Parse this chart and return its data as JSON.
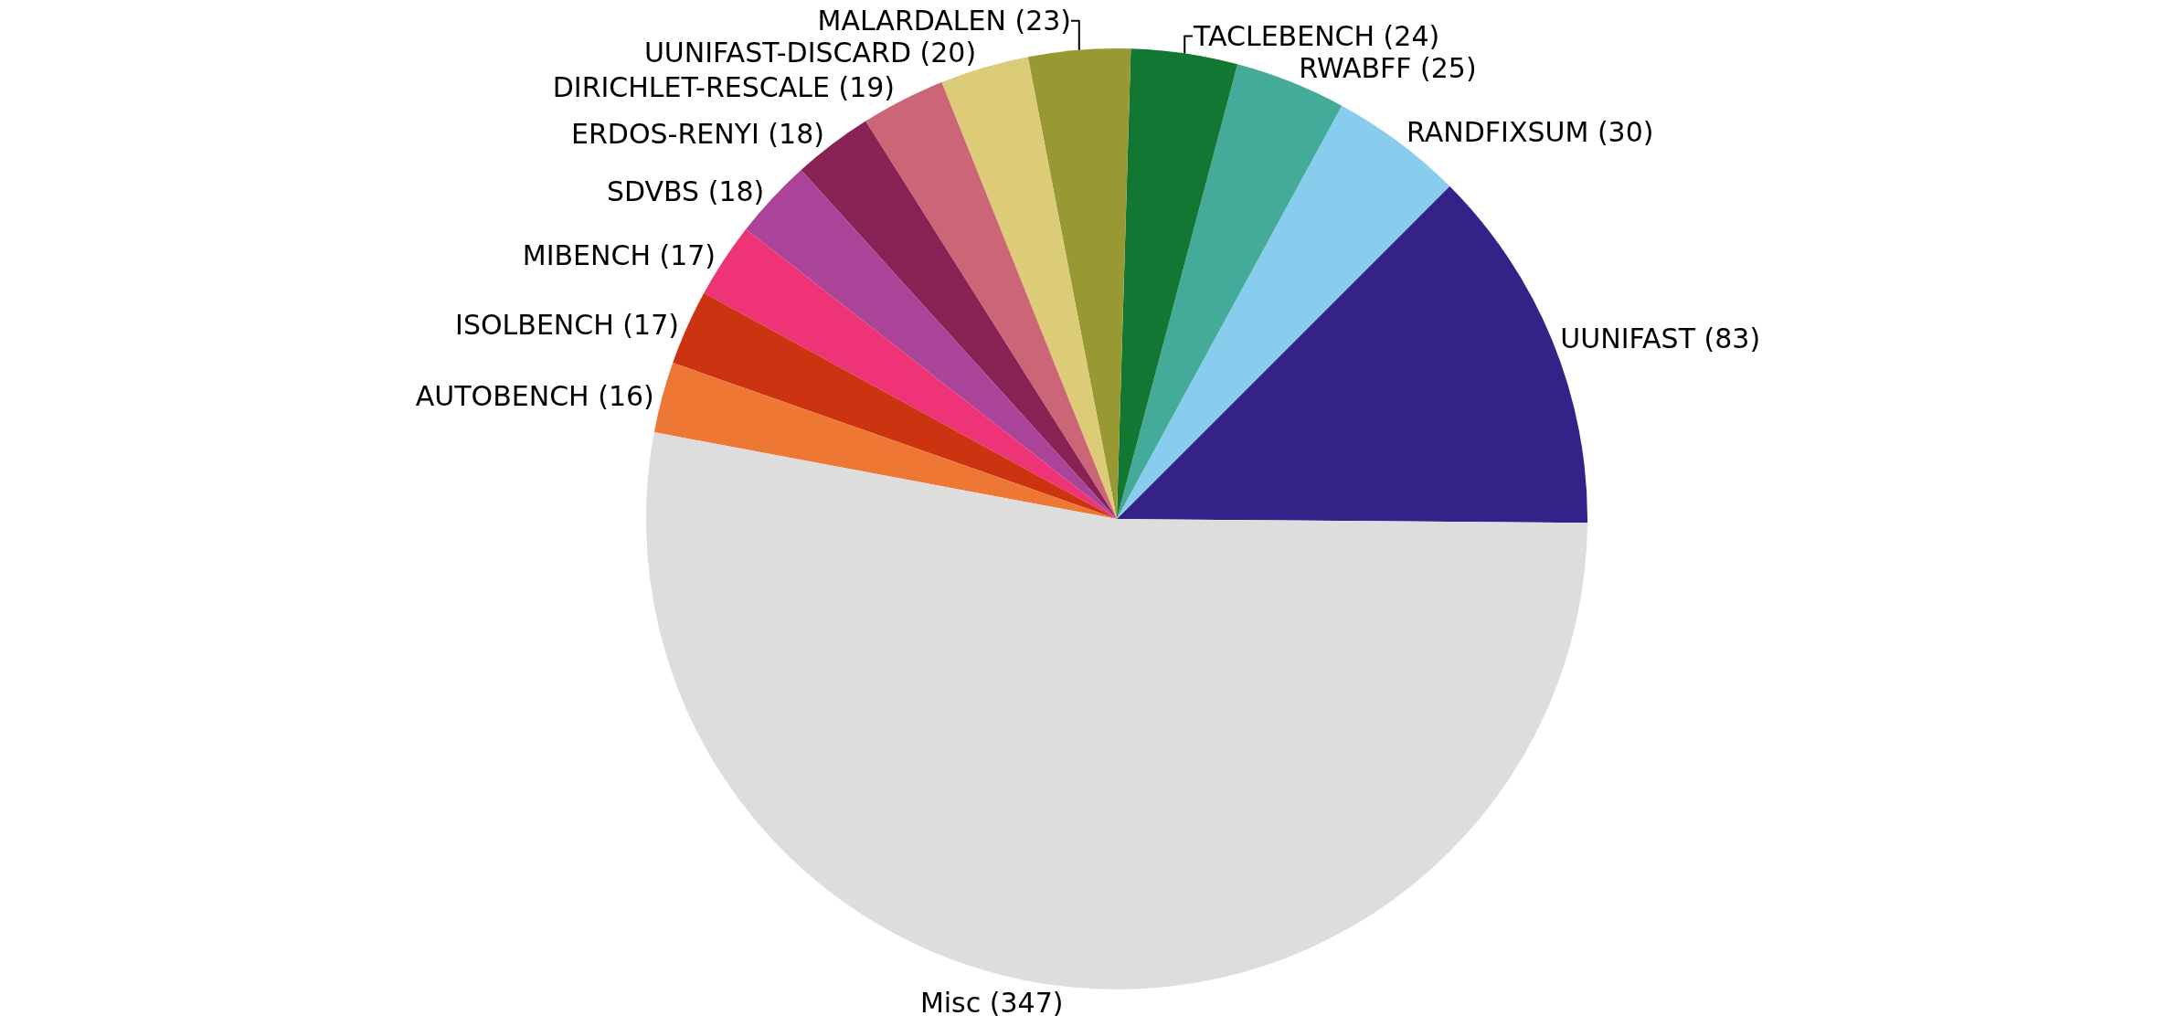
{
  "chart_data": {
    "type": "pie",
    "categories": [
      "UUNIFAST (83)",
      "RANDFIXSUM (30)",
      "RWABFF (25)",
      "TACLEBENCH (24)",
      "MALARDALEN (23)",
      "UUNIFAST-DISCARD (20)",
      "DIRICHLET-RESCALE (19)",
      "ERDOS-RENYI (18)",
      "SDVBS (18)",
      "MIBENCH (17)",
      "ISOLBENCH (17)",
      "AUTOBENCH (16)",
      "Misc (347)"
    ],
    "values": [
      83,
      30,
      25,
      24,
      23,
      20,
      19,
      18,
      18,
      17,
      17,
      16,
      347
    ],
    "colors": [
      "#332288",
      "#88ccee",
      "#44aa99",
      "#117733",
      "#999933",
      "#ddcc77",
      "#cc6677",
      "#882255",
      "#aa4499",
      "#ee3377",
      "#cc3311",
      "#ee7733",
      "#dddddd"
    ],
    "legend": false
  }
}
